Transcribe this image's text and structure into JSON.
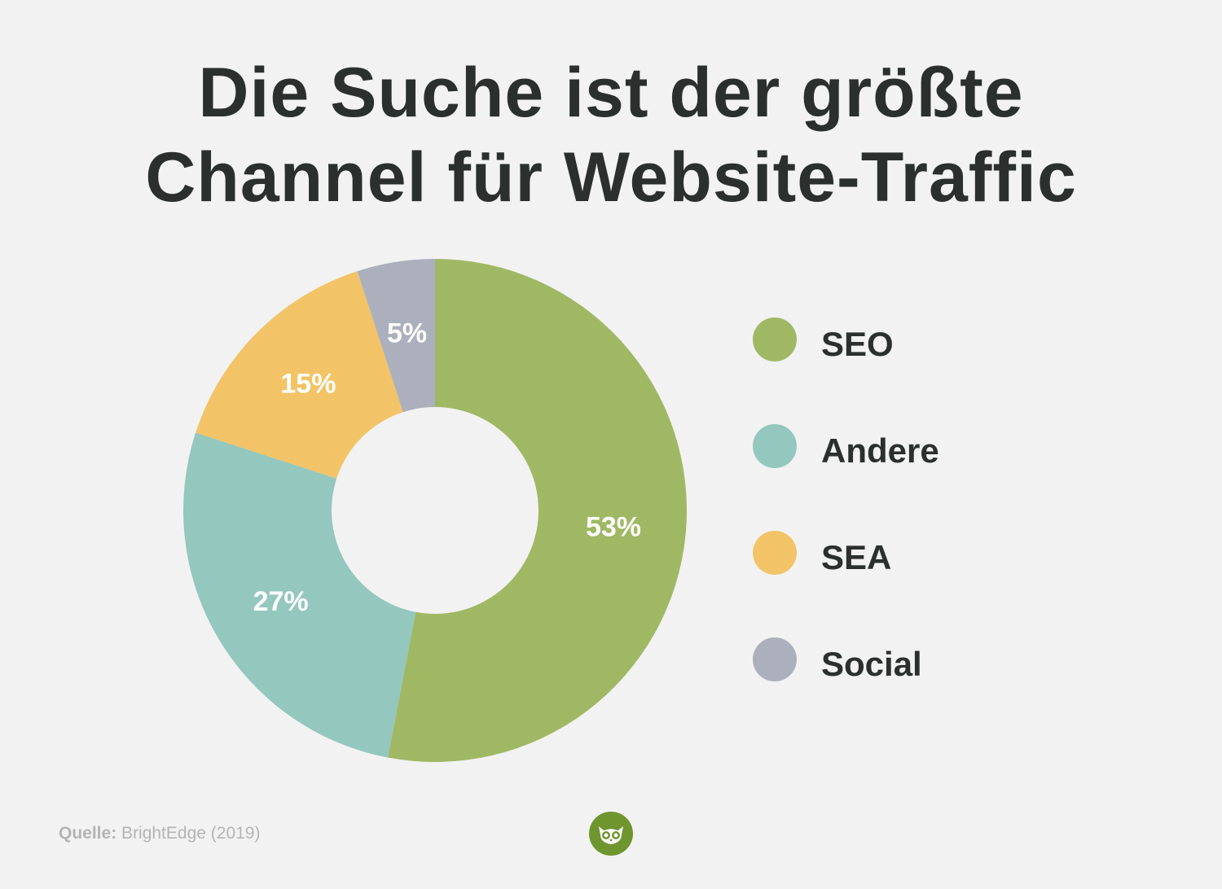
{
  "title": {
    "line1": "Die Suche ist der größte",
    "line2": "Channel für Website-Traffic"
  },
  "chart_data": {
    "type": "pie",
    "variant": "donut",
    "categories": [
      "SEO",
      "Andere",
      "SEA",
      "Social"
    ],
    "values": [
      53,
      27,
      15,
      5
    ],
    "value_labels": [
      "53%",
      "27%",
      "15%",
      "5%"
    ],
    "unit": "%",
    "colors": [
      "#a0b864",
      "#94c7be",
      "#f2c467",
      "#acb0bd"
    ],
    "legend_position": "right",
    "start": "top, clockwise"
  },
  "legend": {
    "items": [
      {
        "label": "SEO",
        "color": "#a0b864"
      },
      {
        "label": "Andere",
        "color": "#94c7be"
      },
      {
        "label": "SEA",
        "color": "#f2c467"
      },
      {
        "label": "Social",
        "color": "#acb0bd"
      }
    ]
  },
  "source": {
    "key": "Quelle:",
    "value": "BrightEdge (2019)"
  },
  "logo": {
    "icon": "owl-icon",
    "color": "#6e952e"
  }
}
